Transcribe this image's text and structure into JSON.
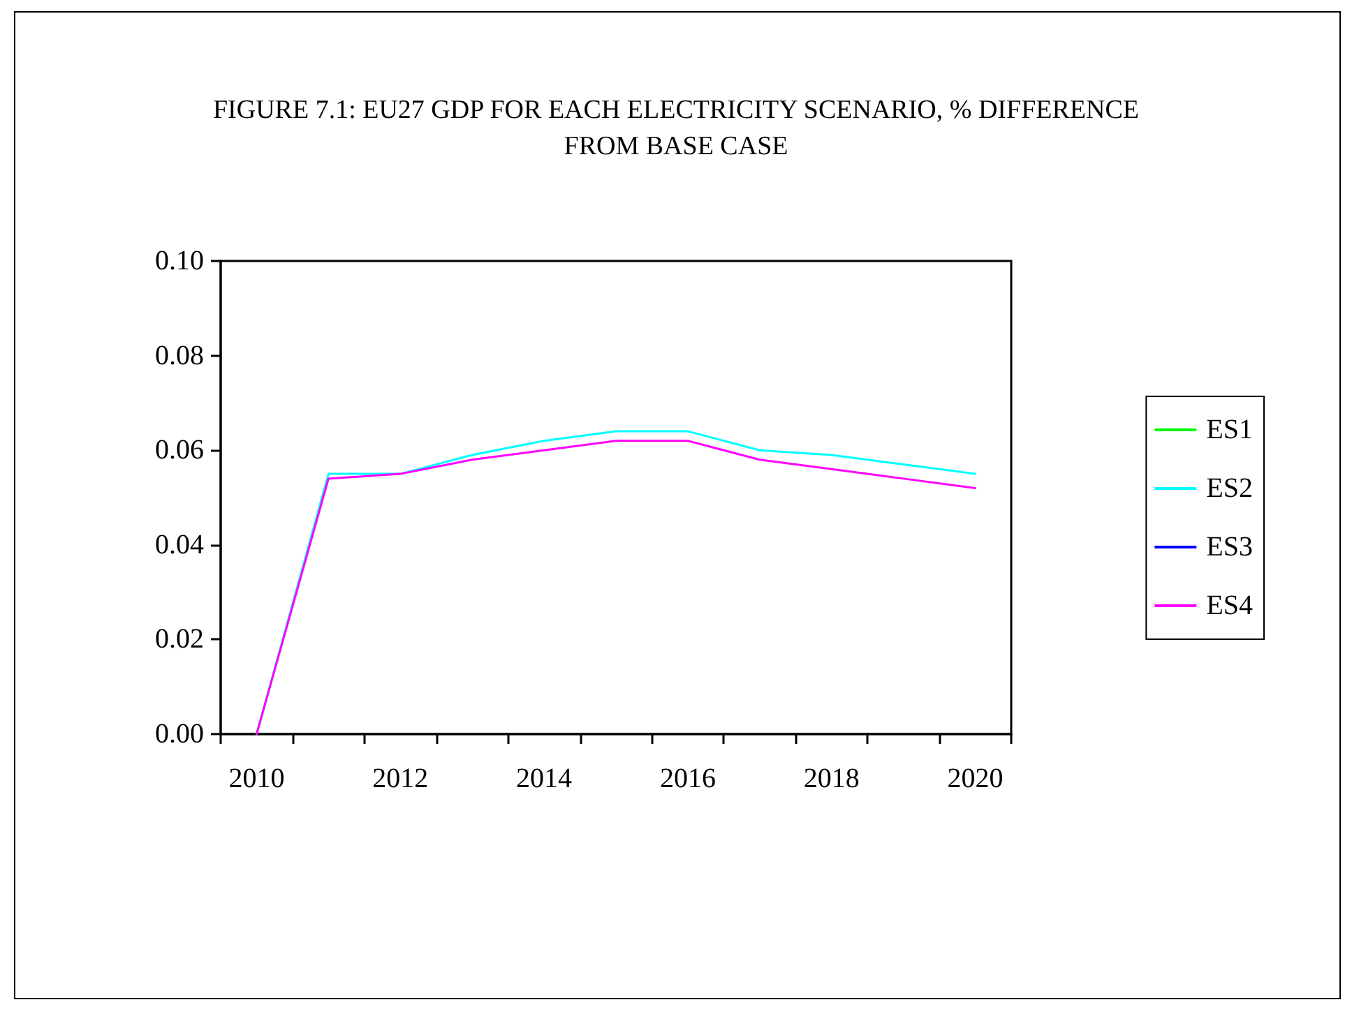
{
  "chart_data": {
    "type": "line",
    "title": "FIGURE 7.1: EU27 GDP FOR EACH ELECTRICITY SCENARIO, % DIFFERENCE\nFROM BASE CASE",
    "categories": [
      "2010",
      null,
      "2012",
      null,
      "2014",
      null,
      "2016",
      null,
      "2018",
      null,
      "2020"
    ],
    "series": [
      {
        "name": "ES1",
        "color": "#00ff00",
        "values": [
          null,
          null,
          null,
          null,
          null,
          null,
          null,
          null,
          null,
          null,
          null
        ]
      },
      {
        "name": "ES2",
        "color": "#00ffff",
        "values": [
          0,
          0.055,
          0.055,
          0.059,
          0.062,
          0.064,
          0.064,
          0.06,
          0.059,
          0.057,
          0.055
        ]
      },
      {
        "name": "ES3",
        "color": "#0000ff",
        "values": [
          null,
          null,
          null,
          null,
          null,
          null,
          null,
          null,
          null,
          null,
          null
        ]
      },
      {
        "name": "ES4",
        "color": "#ff00ff",
        "values": [
          0,
          0.054,
          0.055,
          0.058,
          0.06,
          0.062,
          0.062,
          0.058,
          0.056,
          0.054,
          0.052
        ]
      }
    ],
    "ylim": [
      0,
      0.1
    ],
    "yticks": [
      {
        "value": 0,
        "label": "0.00"
      },
      {
        "value": 0.02,
        "label": "0.02"
      },
      {
        "value": 0.04,
        "label": "0.04"
      },
      {
        "value": 0.06,
        "label": "0.06"
      },
      {
        "value": 0.08,
        "label": "0.08"
      },
      {
        "value": 0.1,
        "label": "0.10"
      }
    ],
    "grid": false,
    "legend": "right",
    "marker": "none",
    "line_style": "solid"
  }
}
